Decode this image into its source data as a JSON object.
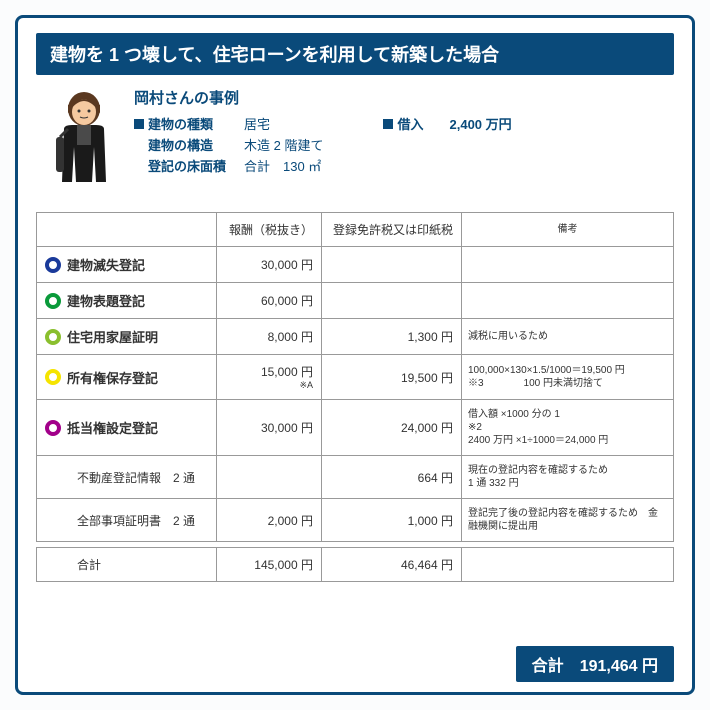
{
  "title": "建物を 1 つ壊して、住宅ローンを利用して新築した場合",
  "case": {
    "name": "岡村さんの事例",
    "rows": [
      {
        "label": "建物の種類",
        "value": "居宅",
        "marker": true
      },
      {
        "label": "建物の構造",
        "value": "木造 2 階建て",
        "marker": false
      },
      {
        "label": "登記の床面積",
        "value": "合計　130 ㎡",
        "marker": false
      }
    ],
    "loan_label": "借入",
    "loan_value": "2,400 万円"
  },
  "headers": {
    "col1": "",
    "col2": "報酬（税抜き）",
    "col3": "登録免許税又は印紙税",
    "col4": "備考"
  },
  "rows": [
    {
      "circle": "#1a3a9a",
      "name": "建物滅失登記",
      "fee": "30,000 円",
      "tax": "",
      "note": ""
    },
    {
      "circle": "#0a9a3a",
      "name": "建物表題登記",
      "fee": "60,000 円",
      "tax": "",
      "note": ""
    },
    {
      "circle": "#8abf2e",
      "name": "住宅用家屋証明",
      "fee": "8,000 円",
      "tax": "1,300 円",
      "note": "減税に用いるため"
    },
    {
      "circle": "#f5e400",
      "name": "所有権保存登記",
      "fee": "15,000 円",
      "fee_note": "※A",
      "tax": "19,500 円",
      "note": "100,000×130×1.5/1000＝19,500 円\n※3　　　　100 円未満切捨て"
    },
    {
      "circle": "#a2008a",
      "name": "抵当権設定登記",
      "fee": "30,000 円",
      "tax": "24,000 円",
      "note": "借入額 ×1000 分の 1\n※2\n2400 万円 ×1÷1000＝24,000 円"
    }
  ],
  "subrows": [
    {
      "name": "不動産登記情報　2 通",
      "fee": "",
      "tax": "664 円",
      "note": "現在の登記内容を確認するため\n1 通 332 円"
    },
    {
      "name": "全部事項証明書　2 通",
      "fee": "2,000 円",
      "tax": "1,000 円",
      "note": "登記完了後の登記内容を確認するため　金融機関に提出用"
    }
  ],
  "totals": {
    "label": "合計",
    "fee": "145,000 円",
    "tax": "46,464 円"
  },
  "grand_total": {
    "label": "合計",
    "value": "191,464 円"
  }
}
